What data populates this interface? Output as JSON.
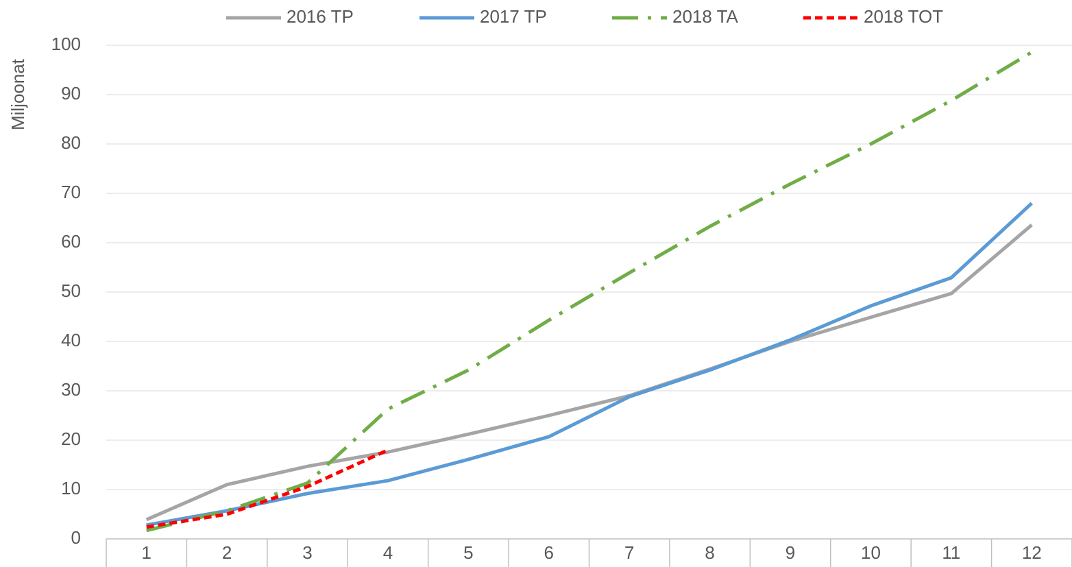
{
  "chart_data": {
    "type": "line",
    "y_label": "Miljoonat",
    "categories": [
      "1",
      "2",
      "3",
      "4",
      "5",
      "6",
      "7",
      "8",
      "9",
      "10",
      "11",
      "12"
    ],
    "series": [
      {
        "name": "2016 TP",
        "color": "#a5a5a5",
        "dash": "solid",
        "values": [
          3.9,
          11,
          14.7,
          17.6,
          21.2,
          25,
          29,
          34.4,
          40,
          44.9,
          49.7,
          63.6
        ]
      },
      {
        "name": "2017 TP",
        "color": "#5b9bd5",
        "dash": "solid",
        "values": [
          2.8,
          5.7,
          9.2,
          11.8,
          16.1,
          20.7,
          28.8,
          34.2,
          40.3,
          47.2,
          52.9,
          68
        ]
      },
      {
        "name": "2018 TA",
        "color": "#70ad47",
        "dash": "dashdot",
        "values": [
          1.7,
          5.7,
          11.3,
          26.3,
          34.2,
          44.3,
          53.9,
          63.3,
          71.9,
          80,
          88.8,
          98.6
        ]
      },
      {
        "name": "2018 TOT",
        "color": "#ff0000",
        "dash": "dash",
        "values": [
          2.4,
          5,
          10.6,
          18,
          null,
          null,
          null,
          null,
          null,
          null,
          null,
          null
        ]
      }
    ],
    "ylim": [
      0,
      100
    ],
    "yticks": [
      0,
      10,
      20,
      30,
      40,
      50,
      60,
      70,
      80,
      90,
      100
    ],
    "grid": true,
    "legend": "top"
  }
}
